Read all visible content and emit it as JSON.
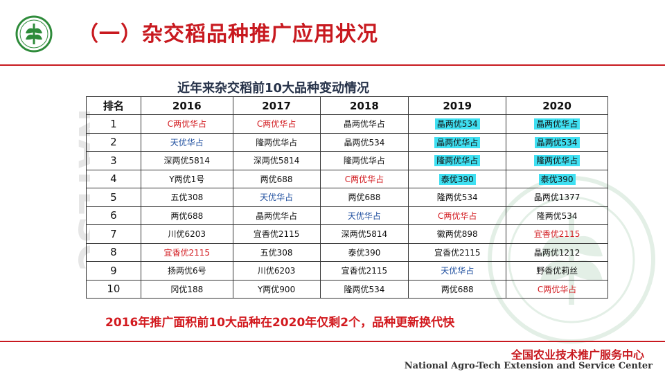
{
  "header": {
    "title": "（一）杂交稻品种推广应用状况"
  },
  "watermark": {
    "text": "NATESC"
  },
  "table": {
    "caption": "近年来杂交稻前10大品种变动情况",
    "headers": [
      "排名",
      "2016",
      "2017",
      "2018",
      "2019",
      "2020"
    ],
    "colors": {
      "red": "#d21a1f",
      "blue": "#1f4f9f",
      "black": "#111111",
      "highlight": "#3fe0f2"
    },
    "rows": [
      {
        "rank": "1",
        "cells": [
          {
            "text": "C两优华占",
            "color": "red"
          },
          {
            "text": "C两优华占",
            "color": "red"
          },
          {
            "text": "晶两优华占",
            "color": "black"
          },
          {
            "text": "晶两优534",
            "color": "black",
            "hl": true
          },
          {
            "text": "晶两优华占",
            "color": "black",
            "hl": true
          }
        ]
      },
      {
        "rank": "2",
        "cells": [
          {
            "text": "天优华占",
            "color": "blue"
          },
          {
            "text": "隆两优华占",
            "color": "black"
          },
          {
            "text": "晶两优534",
            "color": "black"
          },
          {
            "text": "晶两优华占",
            "color": "black",
            "hl": true
          },
          {
            "text": "晶两优534",
            "color": "black",
            "hl": true
          }
        ]
      },
      {
        "rank": "3",
        "cells": [
          {
            "text": "深两优5814",
            "color": "black"
          },
          {
            "text": "深两优5814",
            "color": "black"
          },
          {
            "text": "隆两优华占",
            "color": "black"
          },
          {
            "text": "隆两优华占",
            "color": "black",
            "hl": true
          },
          {
            "text": "隆两优华占",
            "color": "black",
            "hl": true
          }
        ]
      },
      {
        "rank": "4",
        "cells": [
          {
            "text": "Y两优1号",
            "color": "black"
          },
          {
            "text": "两优688",
            "color": "black"
          },
          {
            "text": "C两优华占",
            "color": "red"
          },
          {
            "text": "泰优390",
            "color": "black",
            "hl": true
          },
          {
            "text": "泰优390",
            "color": "black",
            "hl": true
          }
        ]
      },
      {
        "rank": "5",
        "cells": [
          {
            "text": "五优308",
            "color": "black"
          },
          {
            "text": "天优华占",
            "color": "blue"
          },
          {
            "text": "两优688",
            "color": "black"
          },
          {
            "text": "隆两优534",
            "color": "black"
          },
          {
            "text": "晶两优1377",
            "color": "black"
          }
        ]
      },
      {
        "rank": "6",
        "cells": [
          {
            "text": "两优688",
            "color": "black"
          },
          {
            "text": "晶两优华占",
            "color": "black"
          },
          {
            "text": "天优华占",
            "color": "blue"
          },
          {
            "text": "C两优华占",
            "color": "red"
          },
          {
            "text": "隆两优534",
            "color": "black"
          }
        ]
      },
      {
        "rank": "7",
        "cells": [
          {
            "text": "川优6203",
            "color": "black"
          },
          {
            "text": "宜香优2115",
            "color": "black"
          },
          {
            "text": "深两优5814",
            "color": "black"
          },
          {
            "text": "徽两优898",
            "color": "black"
          },
          {
            "text": "宜香优2115",
            "color": "red"
          }
        ]
      },
      {
        "rank": "8",
        "cells": [
          {
            "text": "宜香优2115",
            "color": "red"
          },
          {
            "text": "五优308",
            "color": "black"
          },
          {
            "text": "泰优390",
            "color": "black"
          },
          {
            "text": "宜香优2115",
            "color": "black"
          },
          {
            "text": "晶两优1212",
            "color": "black"
          }
        ]
      },
      {
        "rank": "9",
        "cells": [
          {
            "text": "扬两优6号",
            "color": "black"
          },
          {
            "text": "川优6203",
            "color": "black"
          },
          {
            "text": "宜香优2115",
            "color": "black"
          },
          {
            "text": "天优华占",
            "color": "blue"
          },
          {
            "text": "野香优莉丝",
            "color": "black"
          }
        ]
      },
      {
        "rank": "10",
        "cells": [
          {
            "text": "冈优188",
            "color": "black"
          },
          {
            "text": "Y两优900",
            "color": "black"
          },
          {
            "text": "隆两优534",
            "color": "black"
          },
          {
            "text": "两优688",
            "color": "black"
          },
          {
            "text": "C两优华占",
            "color": "red"
          }
        ]
      }
    ]
  },
  "note": "2016年推广面积前10大品种在2020年仅剩2个，品种更新换代快",
  "footer": {
    "cn": "全国农业技术推广服务中心",
    "en": "National Agro-Tech Extension and Service Center"
  }
}
